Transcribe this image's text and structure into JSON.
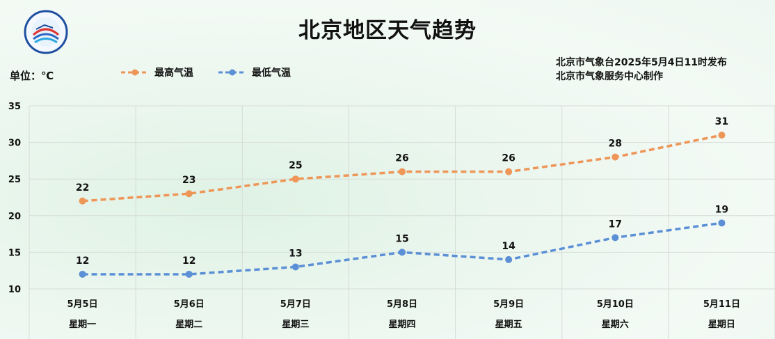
{
  "header": {
    "title": "北京地区天气趋势",
    "publisher_line1": "北京市气象台2025年5月4日11时发布",
    "publisher_line2": "北京市气象服务中心制作",
    "unit_label": "单位：℃"
  },
  "colors": {
    "high": "#ee9657",
    "low": "#5b8fd6"
  },
  "chart_data": {
    "type": "line",
    "categories": [
      "5月5日",
      "5月6日",
      "5月7日",
      "5月8日",
      "5月9日",
      "5月10日",
      "5月11日"
    ],
    "weekdays": [
      "星期一",
      "星期二",
      "星期三",
      "星期四",
      "星期五",
      "星期六",
      "星期日"
    ],
    "series": [
      {
        "name": "最高气温",
        "values": [
          22,
          23,
          25,
          26,
          26,
          28,
          31
        ]
      },
      {
        "name": "最低气温",
        "values": [
          12,
          12,
          13,
          15,
          14,
          17,
          19
        ]
      }
    ],
    "ylim": [
      10,
      35
    ],
    "yticks": [
      10,
      15,
      20,
      25,
      30,
      35
    ],
    "grid": true,
    "legend": "top"
  }
}
